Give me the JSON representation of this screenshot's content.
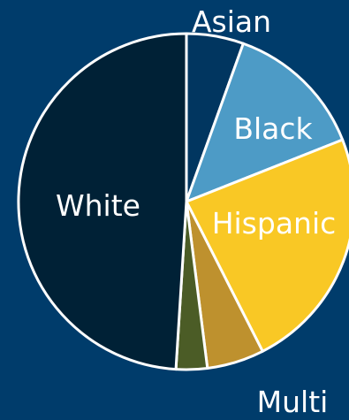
{
  "chart_data": {
    "type": "pie",
    "background_color": "#003c6b",
    "stroke_color": "#ffffff",
    "start_angle_deg": 0,
    "direction": "clockwise",
    "slices": [
      {
        "label": "Asian",
        "value": 5.5,
        "color": "#013660",
        "label_color": "#ffffff"
      },
      {
        "label": "Black",
        "value": 13.5,
        "color": "#4d9bc6",
        "label_color": "#ffffff"
      },
      {
        "label": "Hispanic",
        "value": 23.5,
        "color": "#f9c825",
        "label_color": "#ffffff"
      },
      {
        "label": "",
        "value": 5.5,
        "color": "#be912e",
        "label_color": "#ffffff"
      },
      {
        "label": "Multi",
        "value": 3.0,
        "color": "#4b5c26",
        "label_color": "#ffffff"
      },
      {
        "label": "White",
        "value": 49.0,
        "color": "#002136",
        "label_color": "#ffffff"
      }
    ]
  }
}
